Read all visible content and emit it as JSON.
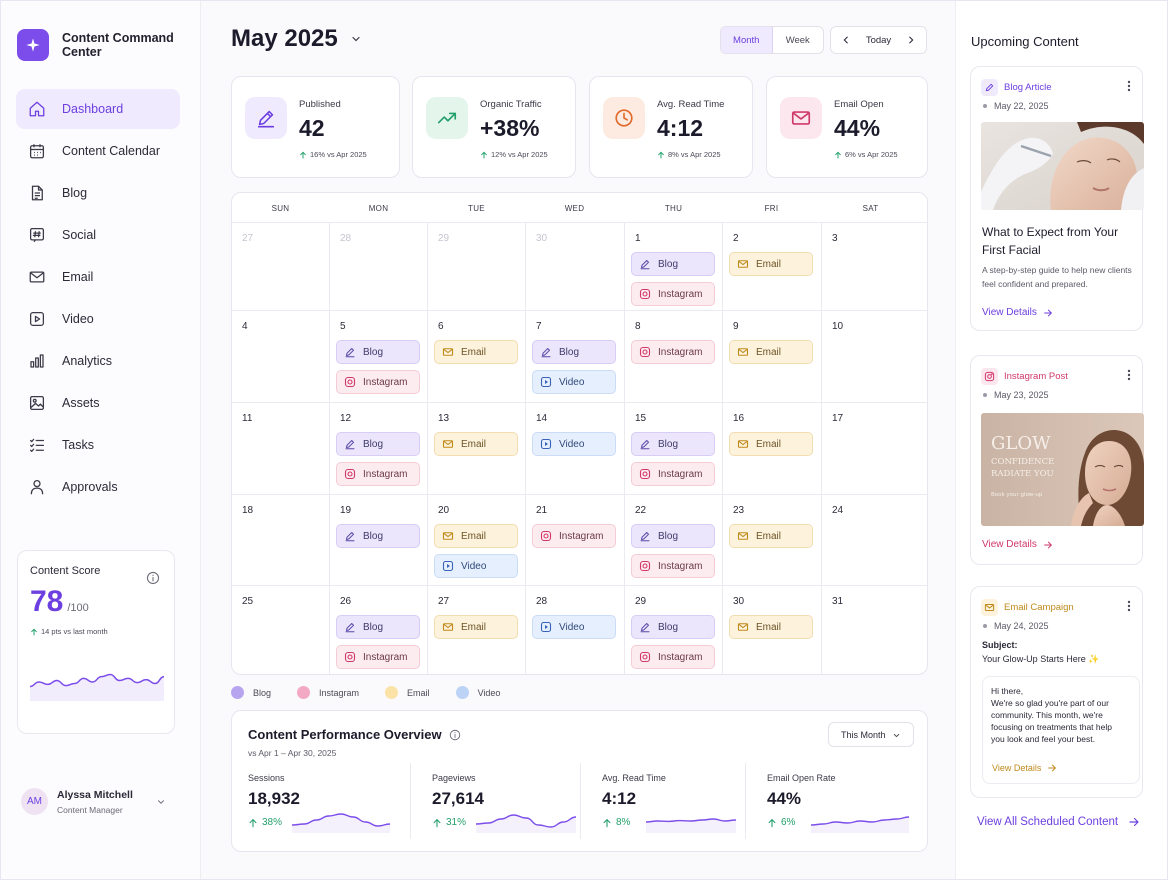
{
  "app": {
    "name": "Content Command Center"
  },
  "sidebar": {
    "items": [
      {
        "label": "Dashboard",
        "icon": "home-icon",
        "active": true
      },
      {
        "label": "Content Calendar",
        "icon": "calendar-icon"
      },
      {
        "label": "Blog",
        "icon": "document-icon"
      },
      {
        "label": "Social",
        "icon": "hashtag-icon"
      },
      {
        "label": "Email",
        "icon": "mail-icon"
      },
      {
        "label": "Video",
        "icon": "video-icon"
      },
      {
        "label": "Analytics",
        "icon": "bar-chart-icon"
      },
      {
        "label": "Assets",
        "icon": "image-icon"
      },
      {
        "label": "Tasks",
        "icon": "checklist-icon"
      },
      {
        "label": "Approvals",
        "icon": "person-icon"
      }
    ],
    "score": {
      "title": "Content Score",
      "value": "78",
      "max": "/100",
      "delta": "14 pts vs last month",
      "trend": [
        0.35,
        0.5,
        0.42,
        0.55,
        0.38,
        0.45,
        0.62,
        0.5,
        0.68,
        0.75,
        0.55,
        0.62,
        0.48,
        0.58,
        0.45,
        0.68
      ]
    },
    "user": {
      "initials": "AM",
      "name": "Alyssa Mitchell",
      "role": "Content Manager"
    }
  },
  "header": {
    "month": "May 2025",
    "view_month": "Month",
    "view_week": "Week",
    "today": "Today"
  },
  "stats": [
    {
      "label": "Published",
      "value": "42",
      "delta": "16% vs Apr 2025",
      "icon": "pen-icon",
      "bg": "#efeafd",
      "fg": "#6c3fe0"
    },
    {
      "label": "Organic Traffic",
      "value": "+38%",
      "delta": "12% vs Apr 2025",
      "icon": "trend-up-icon",
      "bg": "#e4f5ec",
      "fg": "#22a06b"
    },
    {
      "label": "Avg. Read Time",
      "value": "4:12",
      "delta": "8% vs Apr 2025",
      "icon": "clock-icon",
      "bg": "#fdebe2",
      "fg": "#e26a2c"
    },
    {
      "label": "Email Open",
      "value": "44%",
      "delta": "6% vs Apr 2025",
      "icon": "mail-icon",
      "bg": "#fce7ee",
      "fg": "#d1386a"
    }
  ],
  "calendar": {
    "days_of_week": [
      "SUN",
      "MON",
      "TUE",
      "WED",
      "THU",
      "FRI",
      "SAT"
    ],
    "chip_labels": {
      "blog": "Blog",
      "instagram": "Instagram",
      "email": "Email",
      "video": "Video"
    },
    "weeks": [
      [
        {
          "d": "27",
          "muted": true,
          "ev": []
        },
        {
          "d": "28",
          "muted": true,
          "ev": []
        },
        {
          "d": "29",
          "muted": true,
          "ev": []
        },
        {
          "d": "30",
          "muted": true,
          "ev": []
        },
        {
          "d": "1",
          "ev": [
            "blog",
            "instagram"
          ]
        },
        {
          "d": "2",
          "ev": [
            "email"
          ]
        },
        {
          "d": "3",
          "ev": []
        }
      ],
      [
        {
          "d": "4",
          "ev": []
        },
        {
          "d": "5",
          "ev": [
            "blog",
            "instagram"
          ]
        },
        {
          "d": "6",
          "ev": [
            "email"
          ]
        },
        {
          "d": "7",
          "ev": [
            "blog",
            "video"
          ]
        },
        {
          "d": "8",
          "ev": [
            "instagram"
          ]
        },
        {
          "d": "9",
          "ev": [
            "email"
          ]
        },
        {
          "d": "10",
          "ev": []
        }
      ],
      [
        {
          "d": "11",
          "ev": []
        },
        {
          "d": "12",
          "ev": [
            "blog",
            "instagram"
          ]
        },
        {
          "d": "13",
          "ev": [
            "email"
          ]
        },
        {
          "d": "14",
          "ev": [
            "video"
          ]
        },
        {
          "d": "15",
          "ev": [
            "blog",
            "instagram"
          ]
        },
        {
          "d": "16",
          "ev": [
            "email"
          ]
        },
        {
          "d": "17",
          "ev": []
        }
      ],
      [
        {
          "d": "18",
          "ev": []
        },
        {
          "d": "19",
          "ev": [
            "blog"
          ]
        },
        {
          "d": "20",
          "ev": [
            "email",
            "video"
          ]
        },
        {
          "d": "21",
          "ev": [
            "instagram"
          ]
        },
        {
          "d": "22",
          "ev": [
            "blog",
            "instagram"
          ]
        },
        {
          "d": "23",
          "ev": [
            "email"
          ]
        },
        {
          "d": "24",
          "ev": []
        }
      ],
      [
        {
          "d": "25",
          "ev": []
        },
        {
          "d": "26",
          "ev": [
            "blog",
            "instagram"
          ]
        },
        {
          "d": "27",
          "ev": [
            "email"
          ]
        },
        {
          "d": "28",
          "ev": [
            "video"
          ]
        },
        {
          "d": "29",
          "ev": [
            "blog",
            "instagram"
          ]
        },
        {
          "d": "30",
          "ev": [
            "email"
          ]
        },
        {
          "d": "31",
          "ev": []
        }
      ]
    ]
  },
  "legend": [
    {
      "label": "Blog",
      "color": "#b7a6ef"
    },
    {
      "label": "Instagram",
      "color": "#f3a9c3"
    },
    {
      "label": "Email",
      "color": "#fbe3a7"
    },
    {
      "label": "Video",
      "color": "#bcd3f6"
    }
  ],
  "performance": {
    "title": "Content Performance Overview",
    "subtitle": "vs Apr 1 – Apr 30, 2025",
    "range": "This Month",
    "metrics": [
      {
        "label": "Sessions",
        "value": "18,932",
        "delta": "38%",
        "trend": [
          0.3,
          0.35,
          0.55,
          0.75,
          0.85,
          0.7,
          0.45,
          0.25,
          0.35
        ]
      },
      {
        "label": "Pageviews",
        "value": "27,614",
        "delta": "31%",
        "trend": [
          0.35,
          0.4,
          0.6,
          0.8,
          0.65,
          0.3,
          0.2,
          0.45,
          0.7
        ]
      },
      {
        "label": "Avg. Read Time",
        "value": "4:12",
        "delta": "8%",
        "trend": [
          0.45,
          0.5,
          0.48,
          0.52,
          0.5,
          0.55,
          0.6,
          0.5,
          0.55
        ]
      },
      {
        "label": "Email Open Rate",
        "value": "44%",
        "delta": "6%",
        "trend": [
          0.3,
          0.35,
          0.45,
          0.4,
          0.5,
          0.45,
          0.55,
          0.6,
          0.7
        ]
      }
    ]
  },
  "upcoming": {
    "title": "Upcoming Content",
    "cards": [
      {
        "type": "Blog Article",
        "date": "May 22, 2025",
        "title": "What to Expect from Your First Facial",
        "desc": "A step-by-step guide to help new clients feel confident and prepared.",
        "link": "View Details",
        "icon": "pen-icon",
        "color": "#6c3fe0"
      },
      {
        "type": "Instagram Post",
        "date": "May 23, 2025",
        "image_text": [
          "GLOW",
          "CONFIDENCE",
          "RADIATE YOU",
          "Book your glow-up"
        ],
        "link": "View Details",
        "icon": "instagram-icon",
        "color": "#d1386a"
      },
      {
        "type": "Email Campaign",
        "date": "May 24, 2025",
        "subject_label": "Subject:",
        "subject": "Your Glow-Up Starts Here ✨",
        "preview_greeting": "Hi there,",
        "preview": "We're so glad you're part of our community. This month, we're focusing on treatments that help you look and feel your best.",
        "link": "View Details",
        "icon": "mail-icon",
        "color": "#c08a1b"
      }
    ],
    "view_all": "View All Scheduled Content"
  },
  "colors": {
    "accent": "#6c3fe0",
    "positive": "#22a06b"
  }
}
